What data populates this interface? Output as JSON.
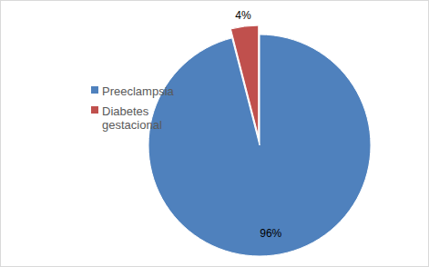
{
  "chart_data": {
    "type": "pie",
    "categories": [
      "Preeclampsia",
      "Diabetes gestacional"
    ],
    "values": [
      96,
      4
    ],
    "value_labels": [
      "96%",
      "4%"
    ],
    "colors": [
      "#4f81bd",
      "#c0504d"
    ],
    "data_labels": true,
    "legend": "left"
  }
}
